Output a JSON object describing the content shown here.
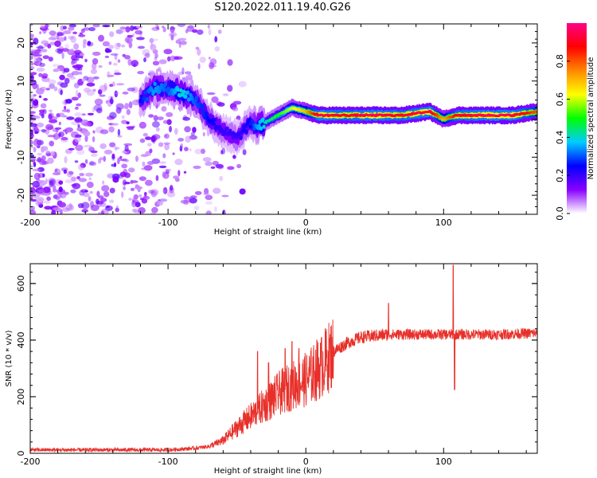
{
  "chart_data": [
    {
      "type": "heatmap",
      "title": "S120.2022.011.19.40.G26",
      "xlabel": "Height of straight line (km)",
      "ylabel": "Frequency (Hz)",
      "xlim": [
        -200,
        168
      ],
      "ylim": [
        -25,
        25
      ],
      "x_ticks": [
        -200,
        -100,
        0,
        100
      ],
      "y_ticks": [
        -20,
        -10,
        0,
        10,
        20
      ],
      "colorbar": {
        "label": "Normalized spectral amplitude",
        "range": [
          0.0,
          1.0
        ],
        "ticks": [
          "0.0",
          "0.2",
          "0.4",
          "0.6",
          "0.8"
        ],
        "tick_values": [
          0.0,
          0.2,
          0.4,
          0.6,
          0.8
        ],
        "colors": [
          "#ffffff",
          "#8800ff",
          "#0000ff",
          "#00ccff",
          "#00ff00",
          "#ffff00",
          "#ff8800",
          "#ff0000",
          "#ff0088"
        ]
      },
      "ridge": {
        "description": "dominant frequency track",
        "x": [
          -120,
          -110,
          -100,
          -90,
          -80,
          -70,
          -60,
          -50,
          -40,
          -35,
          -30,
          -20,
          -10,
          0,
          10,
          30,
          50,
          70,
          90,
          100,
          110,
          130,
          150,
          168
        ],
        "frequency_hz": [
          5,
          8,
          8,
          7,
          5,
          0,
          -3,
          -5,
          -1,
          -2,
          -1,
          1,
          3,
          2,
          1,
          1,
          1,
          1,
          2,
          0,
          1,
          1,
          1,
          2
        ],
        "amplitude": [
          0.25,
          0.35,
          0.3,
          0.4,
          0.3,
          0.25,
          0.2,
          0.2,
          0.25,
          0.35,
          0.4,
          0.5,
          0.6,
          0.7,
          0.95,
          0.9,
          0.95,
          0.9,
          0.95,
          0.7,
          0.9,
          0.95,
          0.95,
          0.8
        ]
      }
    },
    {
      "type": "line",
      "title": "",
      "xlabel": "Height of straight line (km)",
      "ylabel": "SNR (10 * v/v)",
      "xlim": [
        -200,
        168
      ],
      "ylim": [
        0,
        670
      ],
      "x_ticks": [
        -200,
        -100,
        0,
        100
      ],
      "y_ticks": [
        0,
        200,
        400,
        600
      ],
      "series": [
        {
          "name": "SNR",
          "color": "#e8302a",
          "envelope_x": [
            -200,
            -100,
            -80,
            -70,
            -60,
            -50,
            -40,
            -30,
            -20,
            -10,
            0,
            10,
            20,
            30,
            40,
            50,
            60,
            70,
            80,
            90,
            100,
            105,
            110,
            120,
            140,
            168
          ],
          "envelope_y": [
            12,
            12,
            18,
            25,
            45,
            90,
            130,
            170,
            210,
            240,
            260,
            300,
            360,
            390,
            410,
            415,
            420,
            420,
            420,
            420,
            420,
            420,
            420,
            420,
            420,
            425
          ],
          "spikes": [
            {
              "x": -35,
              "y": 360
            },
            {
              "x": -27,
              "y": 320
            },
            {
              "x": -15,
              "y": 370
            },
            {
              "x": -10,
              "y": 395
            },
            {
              "x": -5,
              "y": 370
            },
            {
              "x": 8,
              "y": 400
            },
            {
              "x": 60,
              "y": 530
            },
            {
              "x": 107,
              "y": 665
            },
            {
              "x": 108,
              "y": 225
            }
          ]
        }
      ]
    }
  ]
}
